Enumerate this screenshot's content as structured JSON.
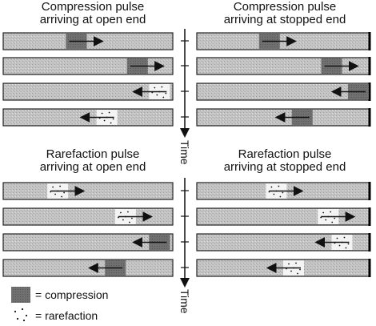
{
  "panels": [
    {
      "id": "tl",
      "title_line1": "Compression pulse",
      "title_line2": "arriving at open end",
      "end": "open",
      "rows": [
        {
          "pulse": "compression",
          "dir": "right"
        },
        {
          "pulse": "compression",
          "dir": "right"
        },
        {
          "pulse": "rarefaction",
          "dir": "left"
        },
        {
          "pulse": "rarefaction",
          "dir": "left"
        }
      ]
    },
    {
      "id": "tr",
      "title_line1": "Compression pulse",
      "title_line2": "arriving at stopped end",
      "end": "stopped",
      "rows": [
        {
          "pulse": "compression",
          "dir": "right"
        },
        {
          "pulse": "compression",
          "dir": "right"
        },
        {
          "pulse": "compression",
          "dir": "left"
        },
        {
          "pulse": "compression",
          "dir": "left"
        }
      ]
    },
    {
      "id": "bl",
      "title_line1": "Rarefaction pulse",
      "title_line2": "arriving at open end",
      "end": "open",
      "rows": [
        {
          "pulse": "rarefaction",
          "dir": "right"
        },
        {
          "pulse": "rarefaction",
          "dir": "right"
        },
        {
          "pulse": "compression",
          "dir": "left"
        },
        {
          "pulse": "compression",
          "dir": "left"
        }
      ]
    },
    {
      "id": "br",
      "title_line1": "Rarefaction pulse",
      "title_line2": "arriving at stopped end",
      "end": "stopped",
      "rows": [
        {
          "pulse": "rarefaction",
          "dir": "right"
        },
        {
          "pulse": "rarefaction",
          "dir": "right"
        },
        {
          "pulse": "rarefaction",
          "dir": "left"
        },
        {
          "pulse": "rarefaction",
          "dir": "left"
        }
      ]
    }
  ],
  "time_axis_label": "Time",
  "legend": {
    "compression_label": "= compression",
    "rarefaction_label": "= rarefaction"
  },
  "colors": {
    "tube": "#bdbdbd",
    "compression": "#6e6e6e",
    "rarefaction": "#f4f4f4",
    "outline": "#222222"
  }
}
